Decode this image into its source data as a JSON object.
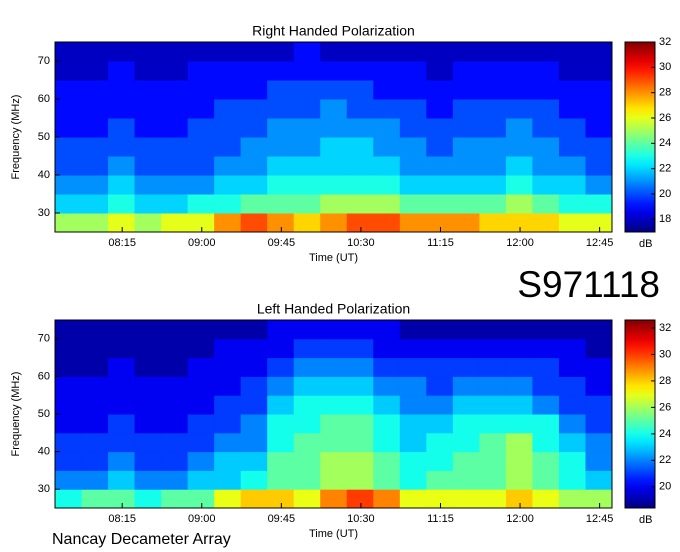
{
  "label": "S971118",
  "footer": "Nancay Decameter Array",
  "chart_data": [
    {
      "type": "heatmap",
      "title": "Right Handed Polarization",
      "xlabel": "Time (UT)",
      "ylabel": "Frequency (MHz)",
      "colorbar_label": "dB",
      "colormap": "jet",
      "xlim": [
        457,
        772
      ],
      "ylim": [
        25,
        75
      ],
      "clim": [
        17,
        32
      ],
      "xticks": [
        {
          "value": 495,
          "label": "08:15"
        },
        {
          "value": 540,
          "label": "09:00"
        },
        {
          "value": 585,
          "label": "09:45"
        },
        {
          "value": 630,
          "label": "10:30"
        },
        {
          "value": 675,
          "label": "11:15"
        },
        {
          "value": 720,
          "label": "12:00"
        },
        {
          "value": 765,
          "label": "12:45"
        }
      ],
      "yticks": [
        30,
        40,
        50,
        60,
        70
      ],
      "cticks": [
        18,
        20,
        22,
        24,
        26,
        28,
        30,
        32
      ],
      "x_edges": [
        457,
        472,
        487,
        502,
        517,
        532,
        547,
        562,
        577,
        592,
        607,
        622,
        637,
        652,
        667,
        682,
        697,
        712,
        727,
        742,
        757,
        772
      ],
      "y_edges": [
        25,
        30,
        35,
        40,
        45,
        50,
        55,
        60,
        65,
        70,
        75
      ],
      "z": [
        [
          25,
          25,
          26,
          25,
          26,
          26,
          28,
          29,
          28,
          27,
          28,
          29,
          29,
          28,
          28,
          28,
          27,
          27,
          27,
          26,
          26
        ],
        [
          22,
          22,
          23,
          22,
          22,
          23,
          23,
          24,
          24,
          24,
          25,
          25,
          25,
          24,
          24,
          24,
          24,
          25,
          24,
          23,
          23
        ],
        [
          21,
          21,
          22,
          21,
          21,
          21,
          22,
          22,
          23,
          23,
          23,
          23,
          23,
          22,
          22,
          22,
          22,
          23,
          22,
          22,
          21
        ],
        [
          20,
          20,
          21,
          20,
          20,
          20,
          21,
          21,
          22,
          22,
          22,
          22,
          22,
          21,
          21,
          21,
          21,
          22,
          21,
          21,
          20
        ],
        [
          20,
          20,
          20,
          20,
          20,
          20,
          20,
          21,
          21,
          21,
          22,
          22,
          21,
          21,
          20,
          21,
          21,
          21,
          21,
          20,
          20
        ],
        [
          19,
          19,
          20,
          19,
          19,
          20,
          20,
          20,
          21,
          21,
          21,
          21,
          21,
          20,
          20,
          20,
          20,
          21,
          20,
          20,
          19
        ],
        [
          19,
          19,
          19,
          19,
          19,
          19,
          20,
          20,
          20,
          20,
          21,
          20,
          20,
          20,
          19,
          20,
          20,
          20,
          20,
          19,
          19
        ],
        [
          19,
          19,
          19,
          19,
          19,
          19,
          19,
          19,
          20,
          20,
          20,
          20,
          19,
          19,
          19,
          19,
          19,
          19,
          19,
          19,
          19
        ],
        [
          18,
          18,
          19,
          18,
          18,
          19,
          19,
          19,
          19,
          19,
          19,
          19,
          19,
          19,
          18,
          19,
          19,
          19,
          19,
          18,
          18
        ],
        [
          18,
          18,
          18,
          18,
          18,
          18,
          18,
          18,
          18,
          19,
          18,
          18,
          18,
          18,
          18,
          18,
          18,
          18,
          18,
          18,
          18
        ]
      ]
    },
    {
      "type": "heatmap",
      "title": "Left Handed Polarization",
      "xlabel": "Time (UT)",
      "ylabel": "Frequency (MHz)",
      "colorbar_label": "dB",
      "colormap": "jet",
      "xlim": [
        457,
        772
      ],
      "ylim": [
        25,
        75
      ],
      "clim": [
        18.4,
        32.6
      ],
      "xticks": [
        {
          "value": 495,
          "label": "08:15"
        },
        {
          "value": 540,
          "label": "09:00"
        },
        {
          "value": 585,
          "label": "09:45"
        },
        {
          "value": 630,
          "label": "10:30"
        },
        {
          "value": 675,
          "label": "11:15"
        },
        {
          "value": 720,
          "label": "12:00"
        },
        {
          "value": 765,
          "label": "12:45"
        }
      ],
      "yticks": [
        30,
        40,
        50,
        60,
        70
      ],
      "cticks": [
        20,
        22,
        24,
        26,
        28,
        30,
        32
      ],
      "x_edges": [
        457,
        472,
        487,
        502,
        517,
        532,
        547,
        562,
        577,
        592,
        607,
        622,
        637,
        652,
        667,
        682,
        697,
        712,
        727,
        742,
        757,
        772
      ],
      "y_edges": [
        25,
        30,
        35,
        40,
        45,
        50,
        55,
        60,
        65,
        70,
        75
      ],
      "z": [
        [
          24,
          25,
          25,
          24,
          25,
          25,
          27,
          28,
          28,
          27,
          29,
          30,
          29,
          27,
          27,
          27,
          27,
          28,
          27,
          26,
          26
        ],
        [
          22,
          22,
          23,
          22,
          22,
          23,
          23,
          24,
          25,
          25,
          26,
          26,
          25,
          24,
          25,
          25,
          25,
          26,
          25,
          24,
          23
        ],
        [
          21,
          21,
          22,
          21,
          21,
          22,
          23,
          23,
          25,
          25,
          26,
          26,
          25,
          24,
          24,
          25,
          25,
          26,
          25,
          24,
          22
        ],
        [
          21,
          21,
          21,
          21,
          21,
          21,
          22,
          22,
          24,
          25,
          25,
          25,
          24,
          23,
          24,
          24,
          25,
          26,
          24,
          23,
          22
        ],
        [
          20,
          20,
          21,
          20,
          20,
          21,
          21,
          22,
          24,
          24,
          25,
          25,
          24,
          23,
          23,
          24,
          24,
          24,
          24,
          22,
          21
        ],
        [
          20,
          20,
          20,
          20,
          20,
          20,
          21,
          21,
          23,
          24,
          24,
          24,
          23,
          22,
          22,
          23,
          23,
          23,
          22,
          21,
          21
        ],
        [
          20,
          20,
          20,
          20,
          20,
          20,
          20,
          21,
          22,
          23,
          23,
          23,
          22,
          22,
          21,
          22,
          22,
          22,
          21,
          21,
          20
        ],
        [
          19,
          19,
          20,
          19,
          19,
          20,
          20,
          20,
          21,
          22,
          22,
          22,
          21,
          21,
          21,
          21,
          21,
          21,
          21,
          20,
          20
        ],
        [
          19,
          19,
          19,
          19,
          19,
          19,
          20,
          20,
          20,
          21,
          21,
          21,
          20,
          20,
          20,
          20,
          20,
          20,
          20,
          20,
          19
        ],
        [
          19,
          19,
          19,
          19,
          19,
          19,
          19,
          19,
          20,
          20,
          20,
          20,
          20,
          19,
          19,
          19,
          19,
          19,
          19,
          19,
          19
        ]
      ]
    }
  ]
}
